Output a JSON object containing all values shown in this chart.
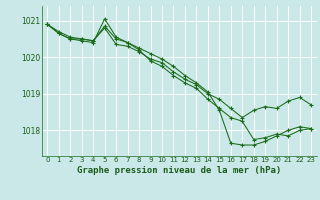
{
  "title": "Graphe pression niveau de la mer (hPa)",
  "bg_color": "#cbe8e8",
  "grid_color": "#ffffff",
  "line_color": "#1a6b1a",
  "marker_color": "#1a6b1a",
  "text_color": "#1a5c1a",
  "xlim": [
    -0.5,
    23.5
  ],
  "ylim": [
    1017.3,
    1021.4
  ],
  "yticks": [
    1018,
    1019,
    1020,
    1021
  ],
  "xticks": [
    0,
    1,
    2,
    3,
    4,
    5,
    6,
    7,
    8,
    9,
    10,
    11,
    12,
    13,
    14,
    15,
    16,
    17,
    18,
    19,
    20,
    21,
    22,
    23
  ],
  "series1": [
    1020.9,
    1020.7,
    1020.55,
    1020.5,
    1020.45,
    1020.8,
    1020.35,
    1020.3,
    1020.15,
    1019.95,
    1019.85,
    1019.6,
    1019.4,
    1019.25,
    1019.0,
    1018.85,
    1018.6,
    1018.35,
    1018.55,
    1018.65,
    1018.6,
    1018.8,
    1018.9,
    1018.7
  ],
  "series2": [
    1020.9,
    1020.65,
    1020.5,
    1020.5,
    1020.45,
    1020.85,
    1020.5,
    1020.4,
    1020.25,
    1020.1,
    1019.95,
    1019.75,
    1019.5,
    1019.3,
    1019.05,
    1018.55,
    1017.65,
    1017.6,
    1017.6,
    1017.7,
    1017.85,
    1018.0,
    1018.1,
    1018.05
  ],
  "series3": [
    1020.9,
    1020.65,
    1020.5,
    1020.45,
    1020.4,
    1021.05,
    1020.55,
    1020.4,
    1020.2,
    1019.9,
    1019.75,
    1019.5,
    1019.3,
    1019.15,
    1018.85,
    1018.6,
    1018.35,
    1018.25,
    1017.75,
    1017.8,
    1017.9,
    1017.85,
    1018.0,
    1018.05
  ],
  "title_fontsize": 6.5,
  "tick_fontsize": 5.0
}
